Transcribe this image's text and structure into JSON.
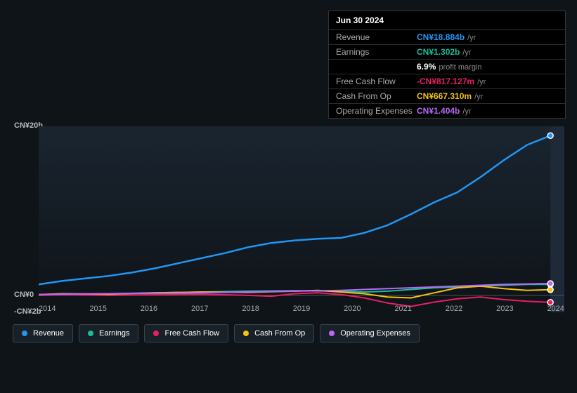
{
  "tooltip": {
    "date": "Jun 30 2024",
    "rows": [
      {
        "label": "Revenue",
        "value": "CN¥18.884b",
        "unit": "/yr",
        "color": "#2196f3"
      },
      {
        "label": "Earnings",
        "value": "CN¥1.302b",
        "unit": "/yr",
        "color": "#1abc9c",
        "margin_pct": "6.9%",
        "margin_label": "profit margin"
      },
      {
        "label": "Free Cash Flow",
        "value": "-CN¥817.127m",
        "unit": "/yr",
        "color": "#e91e63"
      },
      {
        "label": "Cash From Op",
        "value": "CN¥667.310m",
        "unit": "/yr",
        "color": "#f1c40f"
      },
      {
        "label": "Operating Expenses",
        "value": "CN¥1.404b",
        "unit": "/yr",
        "color": "#b968f5"
      }
    ]
  },
  "chart": {
    "type": "line",
    "background_color": "#0f1419",
    "plot_gradient_top": "#1a2530",
    "plot_gradient_bottom": "#0f1419",
    "future_band_color": "#1e2a38",
    "zero_line_color": "#555",
    "text_color": "#bbb",
    "font_size_axis": 11,
    "y_axis": {
      "min": -2,
      "max": 20,
      "ticks": [
        {
          "v": 20,
          "label": "CN¥20b"
        },
        {
          "v": 0,
          "label": "CN¥0"
        },
        {
          "v": -2,
          "label": "-CN¥2b"
        }
      ]
    },
    "x_axis": {
      "min": 2013.5,
      "max": 2024.8,
      "labels": [
        "2014",
        "2015",
        "2016",
        "2017",
        "2018",
        "2019",
        "2020",
        "2021",
        "2022",
        "2023",
        "2024"
      ]
    },
    "marker_x": 2024.5,
    "series": [
      {
        "name": "Revenue",
        "color": "#2196f3",
        "width": 2.5,
        "points": [
          [
            2013.5,
            1.3
          ],
          [
            2014,
            1.7
          ],
          [
            2014.5,
            2.0
          ],
          [
            2015,
            2.3
          ],
          [
            2015.5,
            2.7
          ],
          [
            2016,
            3.2
          ],
          [
            2016.5,
            3.8
          ],
          [
            2017,
            4.4
          ],
          [
            2017.5,
            5.0
          ],
          [
            2018,
            5.7
          ],
          [
            2018.5,
            6.2
          ],
          [
            2019,
            6.5
          ],
          [
            2019.5,
            6.7
          ],
          [
            2020,
            6.8
          ],
          [
            2020.5,
            7.4
          ],
          [
            2021,
            8.3
          ],
          [
            2021.5,
            9.6
          ],
          [
            2022,
            11.0
          ],
          [
            2022.5,
            12.2
          ],
          [
            2023,
            14.0
          ],
          [
            2023.5,
            16.0
          ],
          [
            2024,
            17.8
          ],
          [
            2024.5,
            18.9
          ]
        ]
      },
      {
        "name": "Earnings",
        "color": "#1abc9c",
        "width": 2,
        "points": [
          [
            2013.5,
            0.05
          ],
          [
            2014,
            0.1
          ],
          [
            2015,
            0.2
          ],
          [
            2016,
            0.3
          ],
          [
            2017,
            0.4
          ],
          [
            2018,
            0.5
          ],
          [
            2019,
            0.55
          ],
          [
            2020,
            0.5
          ],
          [
            2020.5,
            0.4
          ],
          [
            2021,
            0.5
          ],
          [
            2021.5,
            0.7
          ],
          [
            2022,
            0.9
          ],
          [
            2022.5,
            1.0
          ],
          [
            2023,
            1.1
          ],
          [
            2023.5,
            1.2
          ],
          [
            2024,
            1.3
          ],
          [
            2024.5,
            1.3
          ]
        ]
      },
      {
        "name": "Free Cash Flow",
        "color": "#e91e63",
        "width": 2,
        "points": [
          [
            2013.5,
            0
          ],
          [
            2014,
            0.1
          ],
          [
            2015,
            0
          ],
          [
            2016,
            0.1
          ],
          [
            2017,
            0.15
          ],
          [
            2018,
            0
          ],
          [
            2018.5,
            -0.1
          ],
          [
            2019,
            0.2
          ],
          [
            2019.5,
            0.3
          ],
          [
            2020,
            0.1
          ],
          [
            2020.5,
            -0.3
          ],
          [
            2021,
            -0.9
          ],
          [
            2021.5,
            -1.3
          ],
          [
            2022,
            -0.8
          ],
          [
            2022.5,
            -0.4
          ],
          [
            2023,
            -0.2
          ],
          [
            2023.5,
            -0.5
          ],
          [
            2024,
            -0.7
          ],
          [
            2024.5,
            -0.82
          ]
        ]
      },
      {
        "name": "Cash From Op",
        "color": "#f1c40f",
        "width": 2,
        "points": [
          [
            2013.5,
            0.1
          ],
          [
            2014,
            0.2
          ],
          [
            2015,
            0.15
          ],
          [
            2016,
            0.3
          ],
          [
            2017,
            0.4
          ],
          [
            2018,
            0.35
          ],
          [
            2019,
            0.5
          ],
          [
            2019.5,
            0.6
          ],
          [
            2020,
            0.4
          ],
          [
            2020.5,
            0.2
          ],
          [
            2021,
            -0.2
          ],
          [
            2021.5,
            -0.3
          ],
          [
            2022,
            0.3
          ],
          [
            2022.5,
            0.9
          ],
          [
            2023,
            1.1
          ],
          [
            2023.5,
            0.8
          ],
          [
            2024,
            0.6
          ],
          [
            2024.5,
            0.67
          ]
        ]
      },
      {
        "name": "Operating Expenses",
        "color": "#b968f5",
        "width": 2,
        "points": [
          [
            2013.5,
            0.1
          ],
          [
            2014,
            0.15
          ],
          [
            2015,
            0.2
          ],
          [
            2016,
            0.25
          ],
          [
            2017,
            0.3
          ],
          [
            2018,
            0.4
          ],
          [
            2019,
            0.5
          ],
          [
            2020,
            0.6
          ],
          [
            2020.5,
            0.7
          ],
          [
            2021,
            0.8
          ],
          [
            2021.5,
            0.9
          ],
          [
            2022,
            1.0
          ],
          [
            2022.5,
            1.1
          ],
          [
            2023,
            1.2
          ],
          [
            2023.5,
            1.3
          ],
          [
            2024,
            1.35
          ],
          [
            2024.5,
            1.4
          ]
        ]
      }
    ]
  },
  "legend": {
    "items": [
      {
        "label": "Revenue",
        "color": "#2196f3"
      },
      {
        "label": "Earnings",
        "color": "#1abc9c"
      },
      {
        "label": "Free Cash Flow",
        "color": "#e91e63"
      },
      {
        "label": "Cash From Op",
        "color": "#f1c40f"
      },
      {
        "label": "Operating Expenses",
        "color": "#b968f5"
      }
    ]
  }
}
